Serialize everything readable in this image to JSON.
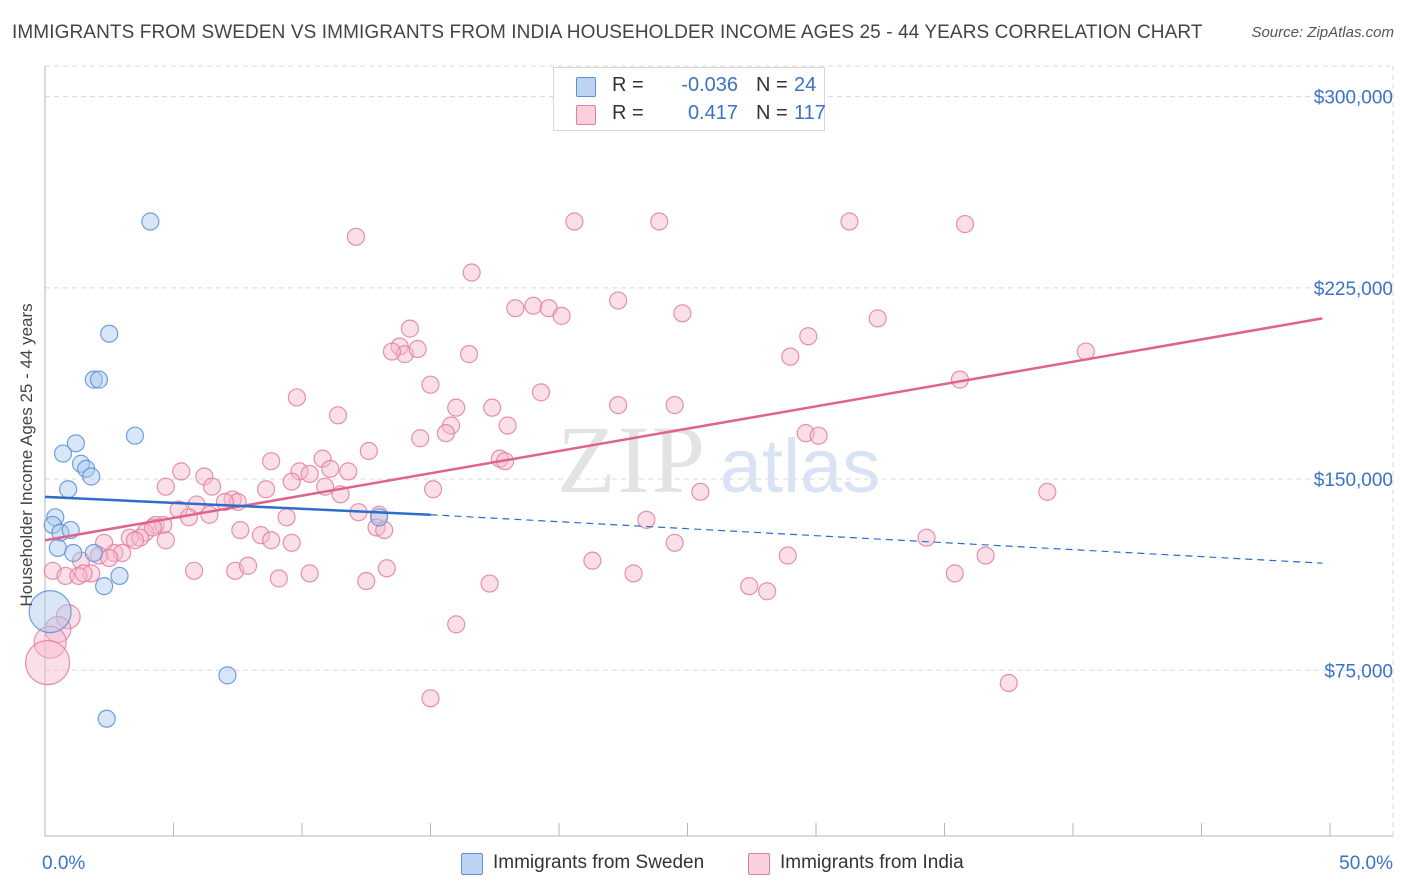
{
  "title": "IMMIGRANTS FROM SWEDEN VS IMMIGRANTS FROM INDIA HOUSEHOLDER INCOME AGES 25 - 44 YEARS CORRELATION CHART",
  "source": "Source: ZipAtlas.com",
  "watermark": {
    "zip": "ZIP",
    "atlas": "atlas"
  },
  "colors": {
    "sweden_fill": "#a9c8ee",
    "sweden_stroke": "#5b8fd6",
    "sweden_line": "#2d6cc8",
    "india_fill": "#f6b9cc",
    "india_stroke": "#e27ea0",
    "india_line": "#e0628e",
    "axis_text": "#3b73c4",
    "grid": "#d9d9d9"
  },
  "legend": {
    "rows": [
      {
        "series": "sweden",
        "r_label": "R =",
        "r_value": "-0.036",
        "n_label": "N =",
        "n_value": "24"
      },
      {
        "series": "india",
        "r_label": "R =",
        "r_value": "0.417",
        "n_label": "N =",
        "n_value": "117"
      }
    ]
  },
  "bottom_legend": {
    "sweden": "Immigrants from Sweden",
    "india": "Immigrants from India"
  },
  "chart_data": {
    "type": "scatter",
    "title": "IMMIGRANTS FROM SWEDEN VS IMMIGRANTS FROM INDIA HOUSEHOLDER INCOME AGES 25 - 44 YEARS CORRELATION CHART",
    "xlabel": "",
    "ylabel": "Householder Income Ages 25 - 44 years",
    "xlim": [
      0,
      50
    ],
    "ylim": [
      10000,
      312000
    ],
    "x_tick_labels": [
      "0.0%",
      "50.0%"
    ],
    "y_ticks": [
      {
        "value": 75000,
        "label": "$75,000"
      },
      {
        "value": 150000,
        "label": "$150,000"
      },
      {
        "value": 225000,
        "label": "$225,000"
      },
      {
        "value": 300000,
        "label": "$300,000"
      }
    ],
    "grid": true,
    "series": [
      {
        "name": "Immigrants from Sweden",
        "key": "sweden",
        "trend": {
          "x0": 0.0,
          "y0": 143000,
          "x_solid_end": 15.0,
          "y_solid_end": 136000,
          "x1": 49.7,
          "y1": 117000
        },
        "points": [
          [
            4.1,
            251000
          ],
          [
            2.5,
            207000
          ],
          [
            1.9,
            189000
          ],
          [
            2.1,
            189000
          ],
          [
            3.5,
            167000
          ],
          [
            1.2,
            164000
          ],
          [
            0.7,
            160000
          ],
          [
            1.4,
            156000
          ],
          [
            1.6,
            154000
          ],
          [
            1.8,
            151000
          ],
          [
            0.9,
            146000
          ],
          [
            0.4,
            135000
          ],
          [
            0.3,
            132000
          ],
          [
            0.6,
            129000
          ],
          [
            1.0,
            130000
          ],
          [
            0.5,
            123000
          ],
          [
            1.1,
            121000
          ],
          [
            1.9,
            121000
          ],
          [
            2.9,
            112000
          ],
          [
            2.3,
            108000
          ],
          [
            13.0,
            135000
          ],
          [
            7.1,
            73000
          ],
          [
            2.4,
            56000
          ],
          [
            0.2,
            98000
          ]
        ]
      },
      {
        "name": "Immigrants from India",
        "key": "india",
        "trend": {
          "x0": 0.0,
          "y0": 126000,
          "x1": 49.7,
          "y1": 213000
        },
        "points": [
          [
            12.1,
            245000
          ],
          [
            20.6,
            251000
          ],
          [
            23.9,
            251000
          ],
          [
            31.3,
            251000
          ],
          [
            35.8,
            250000
          ],
          [
            16.6,
            231000
          ],
          [
            22.3,
            220000
          ],
          [
            18.3,
            217000
          ],
          [
            19.0,
            218000
          ],
          [
            19.6,
            217000
          ],
          [
            20.1,
            214000
          ],
          [
            24.8,
            215000
          ],
          [
            32.4,
            213000
          ],
          [
            29.7,
            206000
          ],
          [
            14.2,
            209000
          ],
          [
            13.8,
            202000
          ],
          [
            14.0,
            199000
          ],
          [
            13.5,
            200000
          ],
          [
            14.5,
            201000
          ],
          [
            16.5,
            199000
          ],
          [
            29.0,
            198000
          ],
          [
            40.5,
            200000
          ],
          [
            35.6,
            189000
          ],
          [
            15.0,
            187000
          ],
          [
            19.3,
            184000
          ],
          [
            9.8,
            182000
          ],
          [
            16.0,
            178000
          ],
          [
            17.4,
            178000
          ],
          [
            22.3,
            179000
          ],
          [
            24.5,
            179000
          ],
          [
            11.4,
            175000
          ],
          [
            15.8,
            171000
          ],
          [
            18.0,
            171000
          ],
          [
            14.6,
            166000
          ],
          [
            15.6,
            168000
          ],
          [
            29.6,
            168000
          ],
          [
            30.1,
            167000
          ],
          [
            12.6,
            161000
          ],
          [
            17.7,
            158000
          ],
          [
            17.9,
            157000
          ],
          [
            10.8,
            158000
          ],
          [
            9.9,
            153000
          ],
          [
            10.3,
            152000
          ],
          [
            11.1,
            154000
          ],
          [
            11.8,
            153000
          ],
          [
            8.8,
            157000
          ],
          [
            6.2,
            151000
          ],
          [
            5.3,
            153000
          ],
          [
            9.6,
            149000
          ],
          [
            10.9,
            147000
          ],
          [
            11.5,
            144000
          ],
          [
            15.1,
            146000
          ],
          [
            6.5,
            147000
          ],
          [
            4.7,
            147000
          ],
          [
            8.6,
            146000
          ],
          [
            7.3,
            142000
          ],
          [
            7.5,
            141000
          ],
          [
            7.0,
            141000
          ],
          [
            25.5,
            145000
          ],
          [
            39.0,
            145000
          ],
          [
            5.9,
            140000
          ],
          [
            6.4,
            136000
          ],
          [
            9.4,
            135000
          ],
          [
            12.2,
            137000
          ],
          [
            13.0,
            136000
          ],
          [
            12.9,
            131000
          ],
          [
            13.2,
            130000
          ],
          [
            23.4,
            134000
          ],
          [
            5.2,
            138000
          ],
          [
            5.6,
            135000
          ],
          [
            4.3,
            132000
          ],
          [
            4.6,
            132000
          ],
          [
            7.6,
            130000
          ],
          [
            8.4,
            128000
          ],
          [
            3.9,
            129000
          ],
          [
            4.2,
            131000
          ],
          [
            3.3,
            127000
          ],
          [
            3.7,
            127000
          ],
          [
            3.5,
            126000
          ],
          [
            4.7,
            126000
          ],
          [
            8.8,
            126000
          ],
          [
            9.6,
            125000
          ],
          [
            24.5,
            125000
          ],
          [
            34.3,
            127000
          ],
          [
            2.3,
            125000
          ],
          [
            2.7,
            121000
          ],
          [
            3.0,
            121000
          ],
          [
            1.4,
            118000
          ],
          [
            2.1,
            120000
          ],
          [
            2.5,
            119000
          ],
          [
            21.3,
            118000
          ],
          [
            28.9,
            120000
          ],
          [
            36.6,
            120000
          ],
          [
            5.8,
            114000
          ],
          [
            7.4,
            114000
          ],
          [
            7.9,
            116000
          ],
          [
            9.1,
            111000
          ],
          [
            10.3,
            113000
          ],
          [
            12.5,
            110000
          ],
          [
            13.3,
            115000
          ],
          [
            17.3,
            109000
          ],
          [
            22.9,
            113000
          ],
          [
            27.4,
            108000
          ],
          [
            28.1,
            106000
          ],
          [
            35.4,
            113000
          ],
          [
            1.8,
            113000
          ],
          [
            0.3,
            114000
          ],
          [
            0.8,
            112000
          ],
          [
            1.3,
            112000
          ],
          [
            1.5,
            113000
          ],
          [
            0.9,
            96000
          ],
          [
            0.5,
            91000
          ],
          [
            16.0,
            93000
          ],
          [
            0.2,
            86000
          ],
          [
            0.1,
            78000
          ],
          [
            37.5,
            70000
          ],
          [
            15.0,
            64000
          ]
        ]
      }
    ]
  }
}
